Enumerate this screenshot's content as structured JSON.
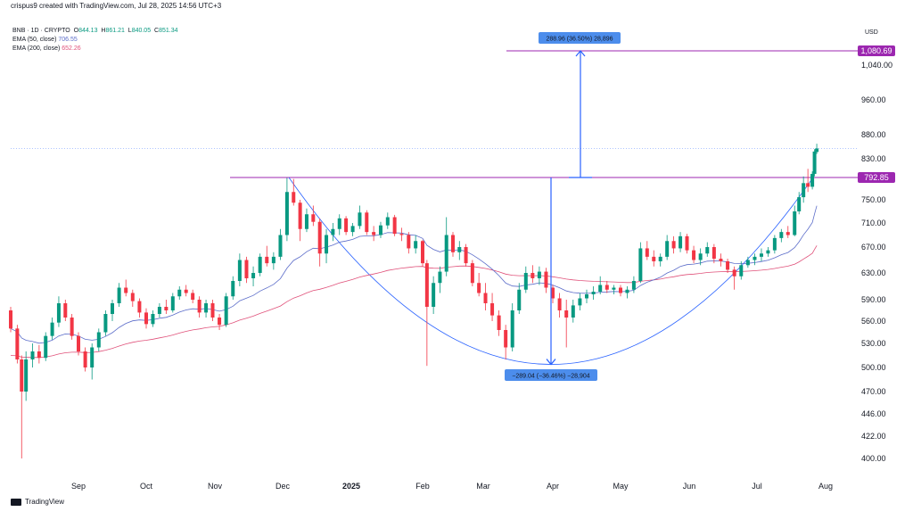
{
  "header": {
    "text": "crispus9 created with TradingView.com, Jul 28, 2025 14:56 UTC+3"
  },
  "legend": {
    "symbol": "BNB · 1D · CRYPTO",
    "ohlc": [
      {
        "k": "O",
        "v": "844.13"
      },
      {
        "k": "H",
        "v": "861.21"
      },
      {
        "k": "L",
        "v": "840.05"
      },
      {
        "k": "C",
        "v": "851.34"
      }
    ],
    "ema50_label": "EMA (50, close)",
    "ema50_value": "706.55",
    "ema200_label": "EMA (200, close)",
    "ema200_value": "652.26"
  },
  "currency": "USD",
  "footer": {
    "brand": "TradingView"
  },
  "colors": {
    "up": "#089981",
    "down": "#f23645",
    "ema50": "#5b6cc9",
    "ema200": "#e0517a",
    "level": "#9c27b0",
    "measure": "#2962ff",
    "anno_bg": "#4c8dec"
  },
  "chart_data": {
    "type": "candlestick",
    "y_ticks": [
      "1,040.00",
      "960.00",
      "880.00",
      "830.00",
      "750.00",
      "710.00",
      "670.00",
      "630.00",
      "590.00",
      "560.00",
      "530.00",
      "500.00",
      "470.00",
      "446.00",
      "422.00",
      "400.00"
    ],
    "x_ticks": [
      "Sep",
      "Oct",
      "Nov",
      "Dec",
      "2025",
      "Feb",
      "Mar",
      "Apr",
      "May",
      "Jun",
      "Jul",
      "Aug"
    ],
    "levels": [
      {
        "value": "1,080.69",
        "price": 1080.69
      },
      {
        "value": "792.85",
        "price": 792.85
      }
    ],
    "measures": [
      {
        "label": "288.96 (36.50%) 28,896",
        "from": 792.85,
        "to": 1080.69
      },
      {
        "label": "−289.04 (−36.46%) −28,904",
        "from": 792.85,
        "to": 503.81
      }
    ],
    "candles": [
      {
        "d": "Aug 01",
        "o": 575,
        "h": 580,
        "l": 545,
        "c": 550
      },
      {
        "d": "Aug 04",
        "o": 550,
        "h": 555,
        "l": 505,
        "c": 510
      },
      {
        "d": "Aug 06",
        "o": 510,
        "h": 515,
        "l": 400,
        "c": 470
      },
      {
        "d": "Aug 08",
        "o": 470,
        "h": 520,
        "l": 460,
        "c": 510
      },
      {
        "d": "Aug 11",
        "o": 510,
        "h": 530,
        "l": 500,
        "c": 520
      },
      {
        "d": "Aug 14",
        "o": 520,
        "h": 528,
        "l": 505,
        "c": 512
      },
      {
        "d": "Aug 17",
        "o": 512,
        "h": 545,
        "l": 508,
        "c": 540
      },
      {
        "d": "Aug 20",
        "o": 540,
        "h": 565,
        "l": 535,
        "c": 558
      },
      {
        "d": "Aug 23",
        "o": 558,
        "h": 595,
        "l": 552,
        "c": 585
      },
      {
        "d": "Aug 26",
        "o": 585,
        "h": 590,
        "l": 560,
        "c": 565
      },
      {
        "d": "Aug 29",
        "o": 565,
        "h": 570,
        "l": 535,
        "c": 540
      },
      {
        "d": "Sep 01",
        "o": 540,
        "h": 545,
        "l": 515,
        "c": 520
      },
      {
        "d": "Sep 04",
        "o": 520,
        "h": 525,
        "l": 495,
        "c": 500
      },
      {
        "d": "Sep 07",
        "o": 500,
        "h": 530,
        "l": 485,
        "c": 525
      },
      {
        "d": "Sep 10",
        "o": 525,
        "h": 550,
        "l": 520,
        "c": 545
      },
      {
        "d": "Sep 13",
        "o": 545,
        "h": 575,
        "l": 540,
        "c": 570
      },
      {
        "d": "Sep 16",
        "o": 570,
        "h": 590,
        "l": 560,
        "c": 585
      },
      {
        "d": "Sep 19",
        "o": 585,
        "h": 615,
        "l": 580,
        "c": 608
      },
      {
        "d": "Sep 22",
        "o": 608,
        "h": 620,
        "l": 595,
        "c": 600
      },
      {
        "d": "Sep 25",
        "o": 600,
        "h": 605,
        "l": 580,
        "c": 588
      },
      {
        "d": "Sep 28",
        "o": 588,
        "h": 592,
        "l": 565,
        "c": 572
      },
      {
        "d": "Oct 01",
        "o": 572,
        "h": 578,
        "l": 550,
        "c": 556
      },
      {
        "d": "Oct 04",
        "o": 556,
        "h": 575,
        "l": 552,
        "c": 570
      },
      {
        "d": "Oct 07",
        "o": 570,
        "h": 585,
        "l": 565,
        "c": 580
      },
      {
        "d": "Oct 10",
        "o": 580,
        "h": 590,
        "l": 570,
        "c": 575
      },
      {
        "d": "Oct 13",
        "o": 575,
        "h": 600,
        "l": 572,
        "c": 595
      },
      {
        "d": "Oct 16",
        "o": 595,
        "h": 610,
        "l": 590,
        "c": 605
      },
      {
        "d": "Oct 19",
        "o": 605,
        "h": 612,
        "l": 595,
        "c": 600
      },
      {
        "d": "Oct 22",
        "o": 600,
        "h": 605,
        "l": 585,
        "c": 590
      },
      {
        "d": "Oct 25",
        "o": 590,
        "h": 595,
        "l": 565,
        "c": 572
      },
      {
        "d": "Oct 28",
        "o": 572,
        "h": 590,
        "l": 565,
        "c": 585
      },
      {
        "d": "Oct 31",
        "o": 585,
        "h": 590,
        "l": 560,
        "c": 565
      },
      {
        "d": "Nov 03",
        "o": 565,
        "h": 570,
        "l": 548,
        "c": 555
      },
      {
        "d": "Nov 06",
        "o": 555,
        "h": 600,
        "l": 552,
        "c": 595
      },
      {
        "d": "Nov 09",
        "o": 595,
        "h": 625,
        "l": 590,
        "c": 618
      },
      {
        "d": "Nov 12",
        "o": 618,
        "h": 660,
        "l": 610,
        "c": 650
      },
      {
        "d": "Nov 15",
        "o": 650,
        "h": 655,
        "l": 615,
        "c": 622
      },
      {
        "d": "Nov 18",
        "o": 622,
        "h": 640,
        "l": 610,
        "c": 630
      },
      {
        "d": "Nov 21",
        "o": 630,
        "h": 660,
        "l": 625,
        "c": 655
      },
      {
        "d": "Nov 24",
        "o": 655,
        "h": 672,
        "l": 640,
        "c": 645
      },
      {
        "d": "Nov 27",
        "o": 645,
        "h": 662,
        "l": 635,
        "c": 655
      },
      {
        "d": "Nov 30",
        "o": 655,
        "h": 700,
        "l": 650,
        "c": 690
      },
      {
        "d": "Dec 03",
        "o": 690,
        "h": 792,
        "l": 680,
        "c": 765
      },
      {
        "d": "Dec 06",
        "o": 765,
        "h": 790,
        "l": 740,
        "c": 745
      },
      {
        "d": "Dec 09",
        "o": 745,
        "h": 750,
        "l": 680,
        "c": 700
      },
      {
        "d": "Dec 12",
        "o": 700,
        "h": 735,
        "l": 695,
        "c": 725
      },
      {
        "d": "Dec 15",
        "o": 725,
        "h": 740,
        "l": 705,
        "c": 712
      },
      {
        "d": "Dec 18",
        "o": 712,
        "h": 718,
        "l": 640,
        "c": 660
      },
      {
        "d": "Dec 21",
        "o": 660,
        "h": 700,
        "l": 645,
        "c": 690
      },
      {
        "d": "Dec 24",
        "o": 690,
        "h": 710,
        "l": 680,
        "c": 700
      },
      {
        "d": "Dec 27",
        "o": 700,
        "h": 725,
        "l": 690,
        "c": 718
      },
      {
        "d": "Dec 30",
        "o": 718,
        "h": 722,
        "l": 690,
        "c": 695
      },
      {
        "d": "Jan 02",
        "o": 695,
        "h": 710,
        "l": 688,
        "c": 705
      },
      {
        "d": "Jan 05",
        "o": 705,
        "h": 740,
        "l": 700,
        "c": 728
      },
      {
        "d": "Jan 08",
        "o": 728,
        "h": 732,
        "l": 690,
        "c": 695
      },
      {
        "d": "Jan 11",
        "o": 695,
        "h": 705,
        "l": 680,
        "c": 690
      },
      {
        "d": "Jan 14",
        "o": 690,
        "h": 712,
        "l": 685,
        "c": 706
      },
      {
        "d": "Jan 17",
        "o": 706,
        "h": 728,
        "l": 700,
        "c": 720
      },
      {
        "d": "Jan 20",
        "o": 720,
        "h": 724,
        "l": 688,
        "c": 692
      },
      {
        "d": "Jan 23",
        "o": 692,
        "h": 702,
        "l": 680,
        "c": 690
      },
      {
        "d": "Jan 26",
        "o": 690,
        "h": 695,
        "l": 660,
        "c": 668
      },
      {
        "d": "Jan 29",
        "o": 668,
        "h": 690,
        "l": 660,
        "c": 680
      },
      {
        "d": "Feb 01",
        "o": 680,
        "h": 682,
        "l": 640,
        "c": 645
      },
      {
        "d": "Feb 03",
        "o": 645,
        "h": 650,
        "l": 502,
        "c": 580
      },
      {
        "d": "Feb 06",
        "o": 580,
        "h": 625,
        "l": 570,
        "c": 615
      },
      {
        "d": "Feb 09",
        "o": 615,
        "h": 640,
        "l": 600,
        "c": 632
      },
      {
        "d": "Feb 12",
        "o": 632,
        "h": 720,
        "l": 625,
        "c": 690
      },
      {
        "d": "Feb 15",
        "o": 690,
        "h": 695,
        "l": 655,
        "c": 662
      },
      {
        "d": "Feb 18",
        "o": 662,
        "h": 680,
        "l": 650,
        "c": 670
      },
      {
        "d": "Feb 21",
        "o": 670,
        "h": 675,
        "l": 640,
        "c": 645
      },
      {
        "d": "Feb 24",
        "o": 645,
        "h": 650,
        "l": 610,
        "c": 615
      },
      {
        "d": "Feb 27",
        "o": 615,
        "h": 630,
        "l": 595,
        "c": 600
      },
      {
        "d": "Mar 02",
        "o": 600,
        "h": 615,
        "l": 575,
        "c": 585
      },
      {
        "d": "Mar 05",
        "o": 585,
        "h": 600,
        "l": 560,
        "c": 568
      },
      {
        "d": "Mar 08",
        "o": 568,
        "h": 575,
        "l": 540,
        "c": 548
      },
      {
        "d": "Mar 11",
        "o": 548,
        "h": 555,
        "l": 510,
        "c": 525
      },
      {
        "d": "Mar 14",
        "o": 525,
        "h": 585,
        "l": 520,
        "c": 575
      },
      {
        "d": "Mar 17",
        "o": 575,
        "h": 615,
        "l": 570,
        "c": 605
      },
      {
        "d": "Mar 20",
        "o": 605,
        "h": 640,
        "l": 600,
        "c": 630
      },
      {
        "d": "Mar 23",
        "o": 630,
        "h": 642,
        "l": 615,
        "c": 622
      },
      {
        "d": "Mar 26",
        "o": 622,
        "h": 640,
        "l": 612,
        "c": 632
      },
      {
        "d": "Mar 29",
        "o": 632,
        "h": 638,
        "l": 600,
        "c": 608
      },
      {
        "d": "Apr 01",
        "o": 608,
        "h": 612,
        "l": 585,
        "c": 592
      },
      {
        "d": "Apr 04",
        "o": 592,
        "h": 600,
        "l": 565,
        "c": 575
      },
      {
        "d": "Apr 07",
        "o": 575,
        "h": 590,
        "l": 525,
        "c": 565
      },
      {
        "d": "Apr 10",
        "o": 565,
        "h": 590,
        "l": 558,
        "c": 582
      },
      {
        "d": "Apr 13",
        "o": 582,
        "h": 600,
        "l": 575,
        "c": 592
      },
      {
        "d": "Apr 16",
        "o": 592,
        "h": 605,
        "l": 585,
        "c": 598
      },
      {
        "d": "Apr 19",
        "o": 598,
        "h": 610,
        "l": 590,
        "c": 602
      },
      {
        "d": "Apr 22",
        "o": 602,
        "h": 625,
        "l": 598,
        "c": 612
      },
      {
        "d": "Apr 25",
        "o": 612,
        "h": 618,
        "l": 600,
        "c": 605
      },
      {
        "d": "Apr 28",
        "o": 605,
        "h": 612,
        "l": 598,
        "c": 608
      },
      {
        "d": "May 01",
        "o": 608,
        "h": 612,
        "l": 595,
        "c": 600
      },
      {
        "d": "May 04",
        "o": 600,
        "h": 610,
        "l": 592,
        "c": 605
      },
      {
        "d": "May 07",
        "o": 605,
        "h": 625,
        "l": 600,
        "c": 618
      },
      {
        "d": "May 10",
        "o": 618,
        "h": 678,
        "l": 615,
        "c": 668
      },
      {
        "d": "May 13",
        "o": 668,
        "h": 680,
        "l": 650,
        "c": 655
      },
      {
        "d": "May 16",
        "o": 655,
        "h": 665,
        "l": 640,
        "c": 648
      },
      {
        "d": "May 19",
        "o": 648,
        "h": 660,
        "l": 640,
        "c": 655
      },
      {
        "d": "May 22",
        "o": 655,
        "h": 690,
        "l": 650,
        "c": 680
      },
      {
        "d": "May 25",
        "o": 680,
        "h": 688,
        "l": 660,
        "c": 668
      },
      {
        "d": "May 28",
        "o": 668,
        "h": 695,
        "l": 662,
        "c": 688
      },
      {
        "d": "May 31",
        "o": 688,
        "h": 692,
        "l": 660,
        "c": 665
      },
      {
        "d": "Jun 03",
        "o": 665,
        "h": 672,
        "l": 645,
        "c": 650
      },
      {
        "d": "Jun 06",
        "o": 650,
        "h": 668,
        "l": 642,
        "c": 660
      },
      {
        "d": "Jun 09",
        "o": 660,
        "h": 678,
        "l": 655,
        "c": 670
      },
      {
        "d": "Jun 12",
        "o": 670,
        "h": 675,
        "l": 645,
        "c": 652
      },
      {
        "d": "Jun 15",
        "o": 652,
        "h": 660,
        "l": 640,
        "c": 648
      },
      {
        "d": "Jun 18",
        "o": 648,
        "h": 652,
        "l": 630,
        "c": 635
      },
      {
        "d": "Jun 21",
        "o": 635,
        "h": 640,
        "l": 605,
        "c": 625
      },
      {
        "d": "Jun 24",
        "o": 625,
        "h": 648,
        "l": 620,
        "c": 642
      },
      {
        "d": "Jun 27",
        "o": 642,
        "h": 655,
        "l": 638,
        "c": 650
      },
      {
        "d": "Jun 30",
        "o": 650,
        "h": 660,
        "l": 642,
        "c": 655
      },
      {
        "d": "Jul 03",
        "o": 655,
        "h": 668,
        "l": 648,
        "c": 660
      },
      {
        "d": "Jul 06",
        "o": 660,
        "h": 670,
        "l": 655,
        "c": 665
      },
      {
        "d": "Jul 09",
        "o": 665,
        "h": 690,
        "l": 660,
        "c": 685
      },
      {
        "d": "Jul 12",
        "o": 685,
        "h": 700,
        "l": 678,
        "c": 695
      },
      {
        "d": "Jul 15",
        "o": 695,
        "h": 705,
        "l": 685,
        "c": 690
      },
      {
        "d": "Jul 18",
        "o": 690,
        "h": 740,
        "l": 688,
        "c": 730
      },
      {
        "d": "Jul 20",
        "o": 730,
        "h": 765,
        "l": 725,
        "c": 755
      },
      {
        "d": "Jul 22",
        "o": 755,
        "h": 795,
        "l": 745,
        "c": 782
      },
      {
        "d": "Jul 24",
        "o": 782,
        "h": 810,
        "l": 765,
        "c": 775
      },
      {
        "d": "Jul 26",
        "o": 775,
        "h": 805,
        "l": 770,
        "c": 800
      },
      {
        "d": "Jul 27",
        "o": 800,
        "h": 850,
        "l": 795,
        "c": 845
      },
      {
        "d": "Jul 28",
        "o": 844.13,
        "h": 861.21,
        "l": 840.05,
        "c": 851.34
      }
    ]
  }
}
